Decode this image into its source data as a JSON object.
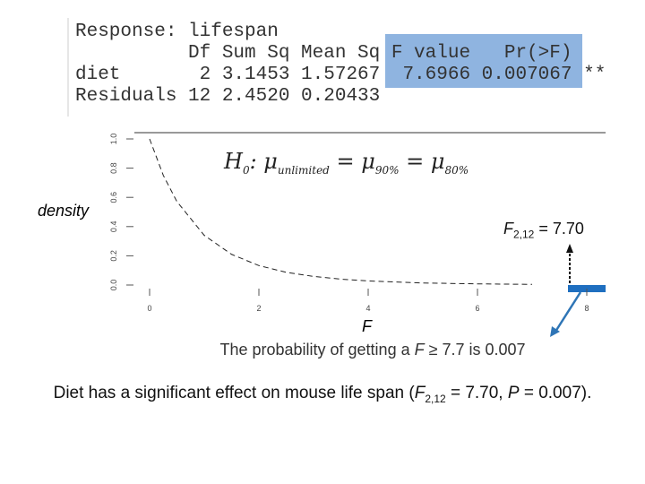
{
  "anova": {
    "lines": [
      "Response: lifespan",
      "          Df Sum Sq Mean Sq F value   Pr(>F)",
      "diet       2 3.1453 1.57267  7.6966 0.007067 **",
      "Residuals 12 2.4520 0.20433"
    ]
  },
  "hypothesis": [
    "H",
    "0",
    ": μ",
    "unlimited",
    " = μ",
    "90%",
    " = μ",
    "80%"
  ],
  "annotation": [
    "F",
    "2,12",
    " = 7.70"
  ],
  "probability": [
    "The probability of getting a ",
    "F",
    " ≥ 7.7 is 0.007"
  ],
  "conclusion": [
    "Diet has a significant effect on mouse life span (",
    "F",
    "2,12",
    " = 7.70, ",
    "P",
    " = 0.007)."
  ],
  "chart_data": {
    "type": "line",
    "x_label": "F",
    "y_label": "density",
    "x": [
      0,
      0.25,
      0.5,
      1,
      1.5,
      2,
      2.5,
      3,
      3.5,
      4,
      5,
      6,
      7
    ],
    "series": [
      {
        "values": [
          1,
          0.751,
          0.571,
          0.34,
          0.21,
          0.133,
          0.087,
          0.059,
          0.04,
          0.028,
          0.014,
          0.0078,
          0.0045
        ],
        "color": "#222222"
      }
    ],
    "xlim": [
      0,
      8
    ],
    "xticks": [
      0,
      2,
      4,
      6,
      8
    ],
    "ylim": [
      0,
      1
    ],
    "yticks": [
      {
        "value": 0,
        "label": "0.0"
      },
      0.2,
      0.4,
      0.6,
      0.8,
      {
        "value": 1,
        "label": "1.0"
      }
    ]
  }
}
